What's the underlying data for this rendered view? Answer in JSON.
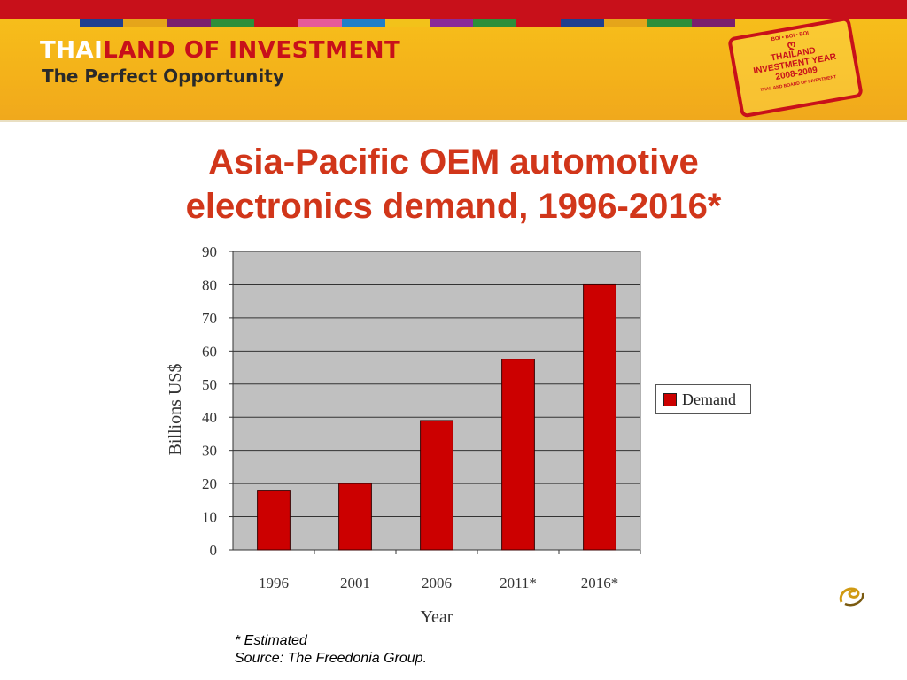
{
  "header": {
    "brand_part1": "THAI",
    "brand_part2": "LAND OF INVESTMENT",
    "tagline": "The Perfect Opportunity",
    "stamp": {
      "top": "BOI • BOI • BOI",
      "line1": "THAILAND",
      "line2": "INVESTMENT YEAR",
      "line3": "2008-2009",
      "bottom": "THAILAND BOARD OF INVESTMENT"
    },
    "stripe_colors": [
      "#1f3f8f",
      "#e5a51a",
      "#7a1f6e",
      "#2d8f3a",
      "#c8101a",
      "#e65a9a",
      "#1f7fc8",
      "#f2c21a",
      "#8a2a9a",
      "#2d8f3a",
      "#c8101a",
      "#1f3f8f",
      "#e5a51a",
      "#2d8f3a",
      "#7a1f6e"
    ]
  },
  "slide": {
    "title_line1": "Asia-Pacific OEM automotive",
    "title_line2": "electronics demand, 1996-2016*"
  },
  "chart_data": {
    "type": "bar",
    "categories": [
      "1996",
      "2001",
      "2006",
      "2011*",
      "2016*"
    ],
    "series": [
      {
        "name": "Demand",
        "values": [
          18,
          20,
          39,
          57.5,
          80
        ],
        "color": "#cc0000"
      }
    ],
    "xlabel": "Year",
    "ylabel": "Billions US$",
    "ylim": [
      0,
      90
    ],
    "yticks": [
      0,
      10,
      20,
      30,
      40,
      50,
      60,
      70,
      80,
      90
    ],
    "grid": true,
    "plot_background": "#c0c0c0",
    "legend_position": "right"
  },
  "footnote": {
    "line1": "* Estimated",
    "line2": "Source: The Freedonia Group."
  }
}
